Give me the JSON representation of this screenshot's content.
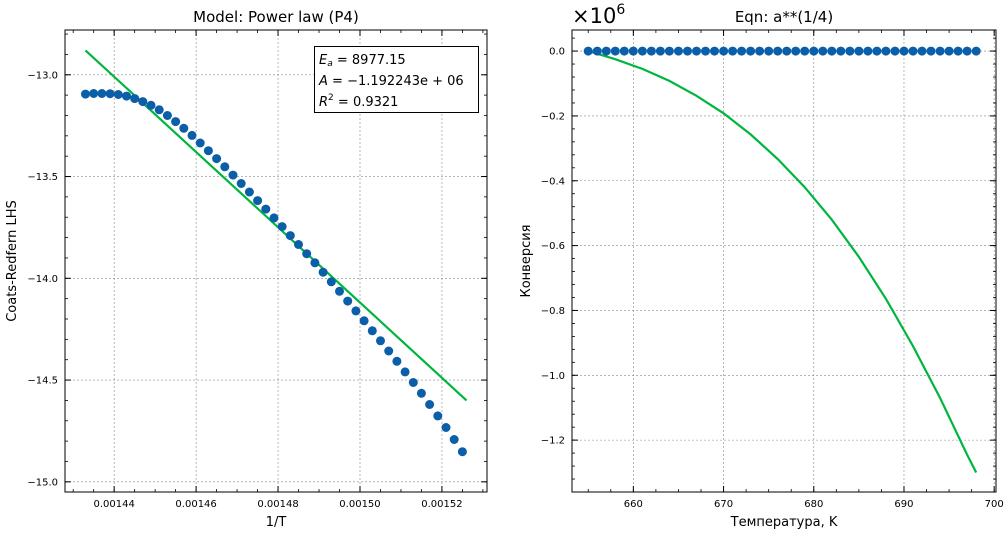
{
  "chart_data": [
    {
      "type": "scatter",
      "title": "Model: Power law (P4)",
      "xlabel": "1/T",
      "ylabel": "Coats-Redfern LHS",
      "xlim": [
        0.001428,
        0.001531
      ],
      "ylim": [
        -15.05,
        -12.78
      ],
      "xticks": [
        0.00144,
        0.00146,
        0.00148,
        0.0015,
        0.00152
      ],
      "xtick_labels": [
        "0.00144",
        "0.00146",
        "0.00148",
        "0.00150",
        "0.00152"
      ],
      "yticks": [
        -13.0,
        -13.5,
        -14.0,
        -14.5,
        -15.0
      ],
      "ytick_labels": [
        "−13.0",
        "−13.5",
        "−14.0",
        "−14.5",
        "−15.0"
      ],
      "grid": true,
      "series": [
        {
          "kind": "scatter",
          "color": "#0b5ea8",
          "x": [
            0.001433,
            0.001435,
            0.001437,
            0.001439,
            0.001441,
            0.001443,
            0.001445,
            0.001447,
            0.001449,
            0.001451,
            0.001453,
            0.001455,
            0.001457,
            0.001459,
            0.001461,
            0.001463,
            0.001465,
            0.001467,
            0.001469,
            0.001471,
            0.001473,
            0.001475,
            0.001477,
            0.001479,
            0.001481,
            0.001483,
            0.001485,
            0.001487,
            0.001489,
            0.001491,
            0.001493,
            0.001495,
            0.001497,
            0.001499,
            0.001501,
            0.001503,
            0.001505,
            0.001507,
            0.001509,
            0.001511,
            0.001513,
            0.001515,
            0.001517,
            0.001519,
            0.001521,
            0.001523,
            0.001525
          ],
          "y": [
            -13.095,
            -13.092,
            -13.092,
            -13.093,
            -13.097,
            -13.105,
            -13.117,
            -13.132,
            -13.15,
            -13.172,
            -13.2,
            -13.23,
            -13.263,
            -13.298,
            -13.335,
            -13.373,
            -13.412,
            -13.452,
            -13.493,
            -13.534,
            -13.576,
            -13.618,
            -13.66,
            -13.703,
            -13.746,
            -13.79,
            -13.834,
            -13.879,
            -13.924,
            -13.97,
            -14.017,
            -14.064,
            -14.112,
            -14.16,
            -14.209,
            -14.258,
            -14.307,
            -14.357,
            -14.408,
            -14.46,
            -14.512,
            -14.565,
            -14.62,
            -14.676,
            -14.733,
            -14.792,
            -14.852
          ]
        },
        {
          "kind": "line",
          "color": "#00b53e",
          "x": [
            0.001433,
            0.001526
          ],
          "y": [
            -12.88,
            -14.6
          ]
        }
      ],
      "legend_position": "top-right",
      "annotation": {
        "ea_value": "= 8977.15",
        "a_value": "= −1.192243e + 06",
        "r2_value": "= 0.9321"
      }
    },
    {
      "type": "line",
      "title": "Eqn: a**(1/4)",
      "xlabel": "Температура, K",
      "ylabel": "Конверсия",
      "xlim": [
        653.2,
        700.2
      ],
      "ylim": [
        -1.36,
        0.065
      ],
      "y_multiplier_exponent": "6",
      "xticks": [
        660,
        670,
        680,
        690,
        700
      ],
      "xtick_labels": [
        "660",
        "670",
        "680",
        "690",
        "700"
      ],
      "yticks": [
        0.0,
        -0.2,
        -0.4,
        -0.6,
        -0.8,
        -1.0,
        -1.2
      ],
      "ytick_labels": [
        "0.0",
        "−0.2",
        "−0.4",
        "−0.6",
        "−0.8",
        "−1.0",
        "−1.2"
      ],
      "grid": true,
      "series": [
        {
          "kind": "scatter",
          "color": "#0b5ea8",
          "x": [
            655,
            656,
            657,
            658,
            659,
            660,
            661,
            662,
            663,
            664,
            665,
            666,
            667,
            668,
            669,
            670,
            671,
            672,
            673,
            674,
            675,
            676,
            677,
            678,
            679,
            680,
            681,
            682,
            683,
            684,
            685,
            686,
            687,
            688,
            689,
            690,
            691,
            692,
            693,
            694,
            695,
            696,
            697,
            698
          ],
          "y": [
            0,
            0,
            0,
            0,
            0,
            0,
            0,
            0,
            0,
            0,
            0,
            0,
            0,
            0,
            0,
            0,
            0,
            0,
            0,
            0,
            0,
            0,
            0,
            0,
            0,
            0,
            0,
            0,
            0,
            0,
            0,
            0,
            0,
            0,
            0,
            0,
            0,
            0,
            0,
            0,
            0,
            0,
            0,
            0
          ]
        },
        {
          "kind": "line",
          "color": "#00b53e",
          "x": [
            655,
            658,
            661,
            664,
            667,
            670,
            673,
            676,
            679,
            682,
            685,
            688,
            691,
            694,
            697,
            698
          ],
          "y": [
            0.0,
            -0.025,
            -0.055,
            -0.092,
            -0.138,
            -0.192,
            -0.257,
            -0.333,
            -0.42,
            -0.52,
            -0.635,
            -0.764,
            -0.91,
            -1.07,
            -1.245,
            -1.3
          ]
        }
      ]
    }
  ]
}
